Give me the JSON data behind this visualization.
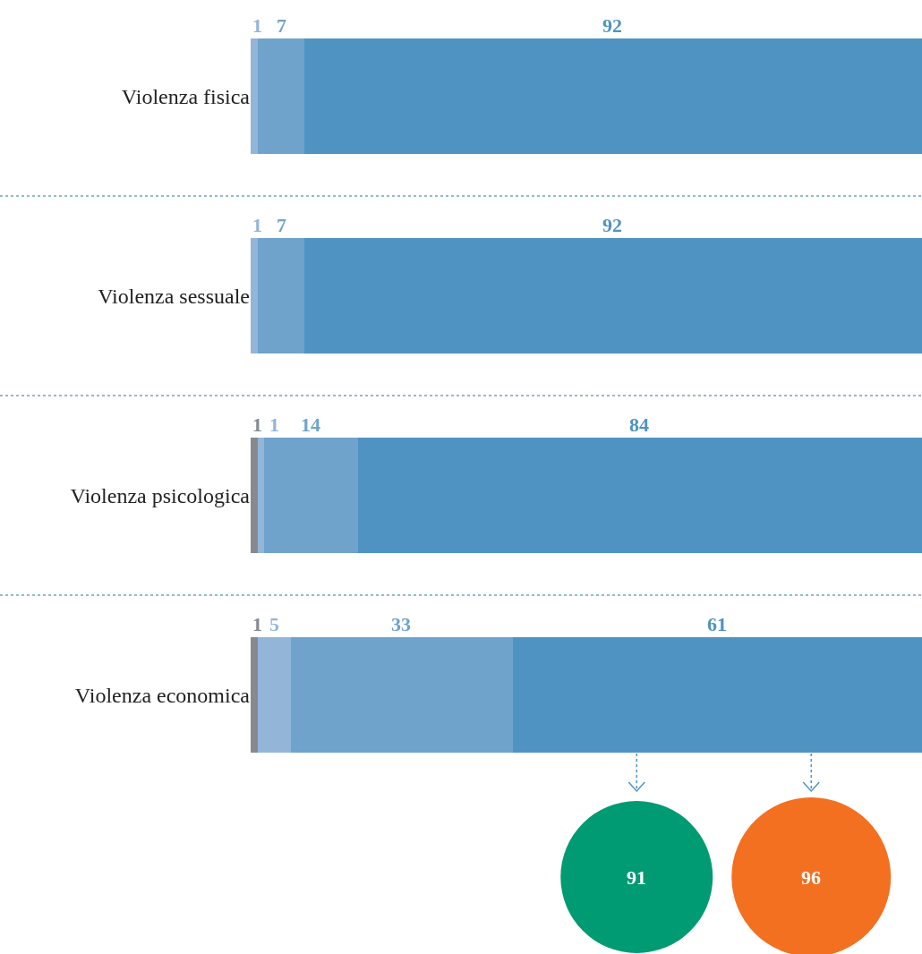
{
  "chart_data": {
    "type": "bar",
    "orientation": "horizontal",
    "stacked": true,
    "data_labels": true,
    "categories": [
      "Violenza fisica",
      "Violenza sessuale",
      "Violenza psicologica",
      "Violenza economica"
    ],
    "series": [
      {
        "color": "#868a8e",
        "values": [
          null,
          null,
          1,
          1
        ]
      },
      {
        "color": "#93b5d8",
        "values": [
          1,
          1,
          1,
          5
        ]
      },
      {
        "color": "#6fa3cb",
        "values": [
          7,
          7,
          14,
          33
        ]
      },
      {
        "color": "#4f93c2",
        "values": [
          92,
          92,
          84,
          61
        ]
      }
    ],
    "xlim": [
      0,
      100
    ],
    "tick_labels": "y",
    "annotations": [
      "91",
      "96"
    ]
  }
}
